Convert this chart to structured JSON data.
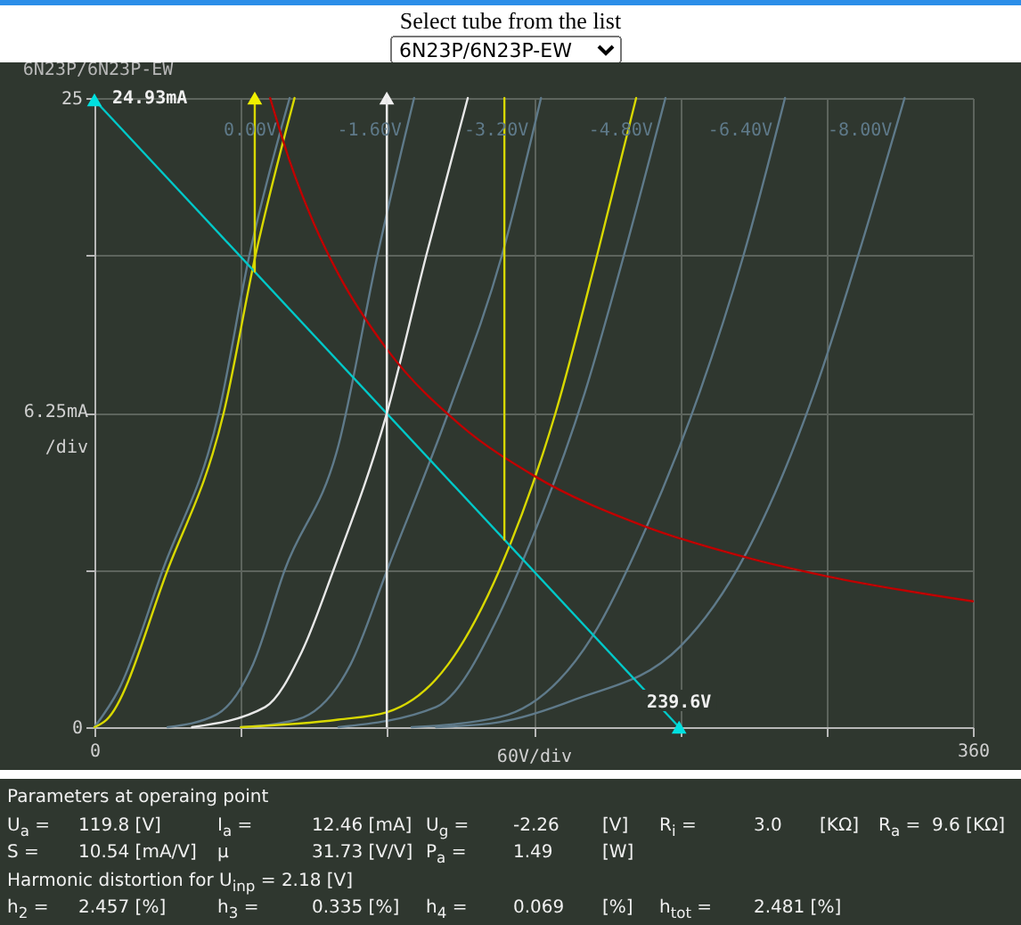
{
  "chart_data": {
    "type": "line",
    "title": "6N23P/6N23P-EW",
    "xlabel": "60V/div",
    "ylabel": "6.25mA /div",
    "xlim": [
      0,
      360
    ],
    "ylim": [
      0,
      25
    ],
    "xticks": [
      0,
      {
        "value": 60,
        "label": null
      },
      {
        "value": 120,
        "label": null
      },
      {
        "value": 180,
        "label": null
      },
      {
        "value": 240,
        "label": null
      },
      {
        "value": 300,
        "label": null
      },
      360
    ],
    "yticks": [
      0,
      {
        "value": 6.25,
        "label": null
      },
      {
        "value": 12.5,
        "label": null
      },
      {
        "value": 18.75,
        "label": null
      },
      25
    ],
    "grid": true,
    "marker": "none",
    "line_style": "solid",
    "series": [
      {
        "name": "0.00V",
        "color": "#5f7a8a",
        "x": [
          0,
          10,
          28,
          51,
          63.5,
          80
        ],
        "values": [
          0,
          1.5,
          6.25,
          12.5,
          18.75,
          25
        ]
      },
      {
        "name": "-1.60V",
        "color": "#5f7a8a",
        "x": [
          30,
          50,
          65,
          78,
          100,
          116,
          131
        ],
        "values": [
          0,
          0.5,
          2.5,
          6.25,
          11.2,
          18.75,
          25
        ]
      },
      {
        "name": "-3.20V",
        "color": "#5f7a8a",
        "x": [
          60,
          83,
          105,
          120,
          145,
          167,
          183
        ],
        "values": [
          0,
          0.3,
          2.5,
          6.25,
          12.5,
          18.75,
          25
        ]
      },
      {
        "name": "-4.80V",
        "color": "#5f7a8a",
        "x": [
          100,
          140,
          166,
          174,
          201,
          217,
          234
        ],
        "values": [
          0,
          0.8,
          4.5,
          6.25,
          13.3,
          18.75,
          25
        ]
      },
      {
        "name": "-6.40V",
        "color": "#5f7a8a",
        "x": [
          130,
          166,
          204,
          226,
          248,
          266,
          283
        ],
        "values": [
          0,
          0.4,
          3.6,
          7.9,
          13.3,
          18.75,
          25
        ]
      },
      {
        "name": "-8.00V",
        "color": "#5f7a8a",
        "x": [
          140,
          166,
          197,
          240,
          267,
          295,
          313,
          332
        ],
        "values": [
          0,
          0.2,
          1.1,
          3.2,
          6.9,
          13.3,
          18.75,
          25
        ]
      },
      {
        "type": "line",
        "color": "#d8d800",
        "x": [
          0,
          5,
          30,
          53,
          66,
          82
        ],
        "values": [
          0,
          0.3,
          6.25,
          12.5,
          18.75,
          25
        ]
      },
      {
        "type": "line",
        "color": "#e8e8e8",
        "x": [
          40,
          70,
          85,
          98,
          119.8,
          136,
          153
        ],
        "values": [
          0,
          0.8,
          3,
          6.25,
          12.46,
          18.75,
          25
        ]
      },
      {
        "type": "line",
        "color": "#d8d800",
        "x": [
          60,
          100,
          120,
          145,
          166,
          189,
          206,
          222
        ],
        "values": [
          0,
          0.3,
          0.6,
          2.5,
          6.25,
          12.5,
          18.75,
          25
        ]
      },
      {
        "type": "line",
        "color": "#c00000",
        "x": [
          72,
          80,
          90,
          100,
          120,
          150,
          180,
          225,
          270,
          300,
          360
        ],
        "values": [
          25,
          22.5,
          20,
          18,
          15,
          12,
          10,
          8,
          6.67,
          6,
          5
        ]
      },
      {
        "type": "line",
        "color": "#00c8c8",
        "x": [
          0,
          239.6
        ],
        "values": [
          24.93,
          0
        ]
      },
      {
        "type": "line",
        "color": "#d8d800",
        "x": [
          65.7,
          65.7
        ],
        "values": [
          18.1,
          25
        ]
      },
      {
        "type": "line",
        "color": "#d8d800",
        "x": [
          168,
          168
        ],
        "values": [
          7.45,
          25
        ]
      },
      {
        "type": "scatter",
        "marker": "triangle",
        "color": "#00e0e0",
        "x": [
          0,
          239.6
        ],
        "values": [
          24.93,
          0
        ]
      },
      {
        "type": "scatter",
        "marker": "triangle",
        "color": "#f0f0f0",
        "x": [
          119.8
        ],
        "values": [
          25
        ]
      },
      {
        "type": "scatter",
        "marker": "triangle",
        "color": "#f0f000",
        "x": [
          65.7
        ],
        "values": [
          25
        ]
      }
    ],
    "ref_lines": [
      {
        "axis": "x",
        "value": 119.8,
        "color": "#e8e8e8"
      }
    ],
    "annotations": [
      "Select tube from the list",
      "6N23P/6N23P-EW",
      "Parameters at operaing point",
      "U$_{a}$ =\t119.8 [V]\tI$_{a}$ =\t12.46 [mA]\tU$_{g}$ =\t-2.26\t[V]\tR$_{i}$ =\t3.0\t[KΩ]\tR$_{a}$ =  9.6 [KΩ]",
      "S =\t10.54 [mA/V]\tμ\t31.73 [V/V]\tP$_{a}$ =\t1.49\t[W]",
      "Harmonic distortion for U$_{inp}$ = 2.18 [V]",
      "h$_{2}$ =\t2.457 [%]\th$_{3}$ =\t0.335 [%]\th$_{4}$ =\t0.069\t[%]\th$_{tot}$ =\t2.481 [%]",
      {
        "text": "24.93mA",
        "x": 0,
        "y": 24.93
      },
      {
        "text": "239.6V",
        "x": 239.6,
        "y": 0
      }
    ]
  }
}
